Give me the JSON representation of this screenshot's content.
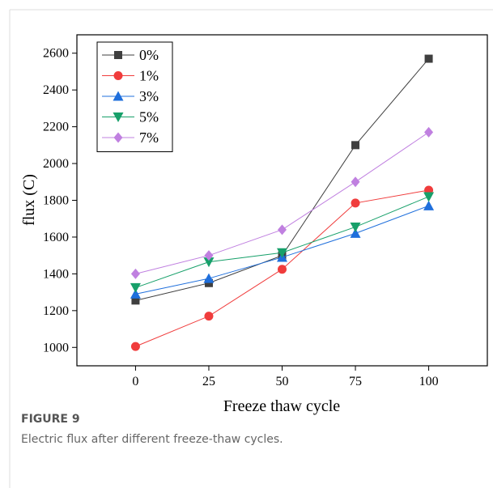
{
  "chart_data": {
    "type": "line",
    "xlabel": "Freeze thaw cycle",
    "ylabel": "flux (C)",
    "x": [
      0,
      25,
      50,
      75,
      100
    ],
    "xlim": [
      -20,
      120
    ],
    "xticks": [
      0,
      25,
      50,
      75,
      100
    ],
    "ylim": [
      900,
      2700
    ],
    "yticks": [
      1000,
      1200,
      1400,
      1600,
      1800,
      2000,
      2200,
      2400,
      2600
    ],
    "legend": "upper-left",
    "series": [
      {
        "name": "0%",
        "color": "#3f3f3f",
        "marker": "square",
        "values": [
          1255,
          1350,
          1500,
          2100,
          2570
        ]
      },
      {
        "name": "1%",
        "color": "#f03c3c",
        "marker": "circle",
        "values": [
          1005,
          1170,
          1425,
          1785,
          1855
        ]
      },
      {
        "name": "3%",
        "color": "#1f6fdc",
        "marker": "triangle-up",
        "values": [
          1290,
          1375,
          1490,
          1620,
          1770
        ]
      },
      {
        "name": "5%",
        "color": "#17a06a",
        "marker": "triangle-down",
        "values": [
          1325,
          1465,
          1515,
          1655,
          1820
        ]
      },
      {
        "name": "7%",
        "color": "#c080e0",
        "marker": "diamond",
        "values": [
          1400,
          1500,
          1640,
          1900,
          2170
        ]
      }
    ]
  },
  "figure_label": "FIGURE 9",
  "caption": "Electric flux after different freeze-thaw cycles."
}
